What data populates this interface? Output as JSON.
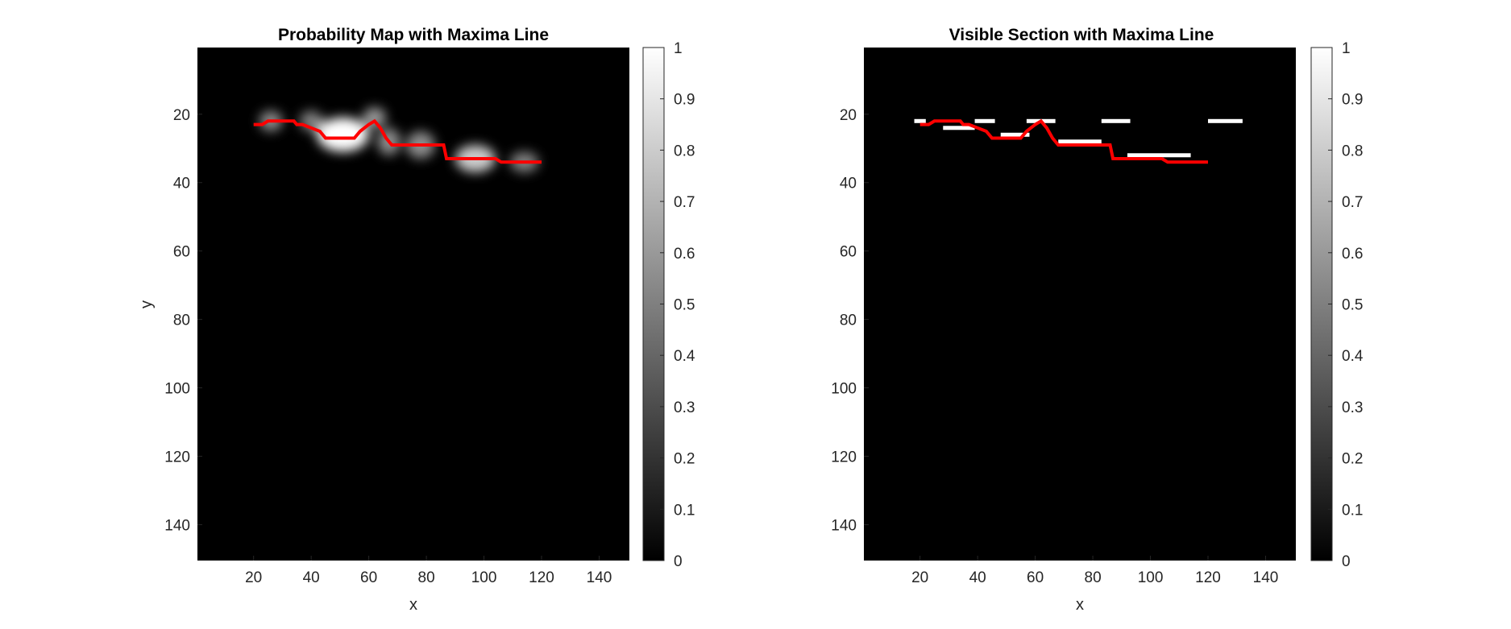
{
  "chart_data": [
    {
      "type": "heatmap",
      "title": "Probability Map with Maxima Line",
      "xlabel": "x",
      "ylabel": "y",
      "xlim": [
        0.5,
        150.5
      ],
      "ylim": [
        0.5,
        150.5
      ],
      "y_reversed": true,
      "x_ticks": [
        "20",
        "40",
        "60",
        "80",
        "100",
        "120",
        "140"
      ],
      "y_ticks": [
        "20",
        "40",
        "60",
        "80",
        "100",
        "120",
        "140"
      ],
      "colormap": "gray",
      "colorbar": {
        "min": 0,
        "max": 1,
        "ticks": [
          "0",
          "0.1",
          "0.2",
          "0.3",
          "0.4",
          "0.5",
          "0.6",
          "0.7",
          "0.8",
          "0.9",
          "1"
        ]
      },
      "blobs": [
        {
          "x": 26,
          "y": 22,
          "rx": 4,
          "ry": 3,
          "peak": 0.55
        },
        {
          "x": 40,
          "y": 22,
          "rx": 4,
          "ry": 3,
          "peak": 0.5
        },
        {
          "x": 51,
          "y": 26,
          "rx": 9,
          "ry": 5,
          "peak": 1.0
        },
        {
          "x": 62,
          "y": 21,
          "rx": 4,
          "ry": 3,
          "peak": 0.6
        },
        {
          "x": 67,
          "y": 28,
          "rx": 4,
          "ry": 4,
          "peak": 0.55
        },
        {
          "x": 78,
          "y": 29,
          "rx": 5,
          "ry": 4,
          "peak": 0.55
        },
        {
          "x": 97,
          "y": 33,
          "rx": 7,
          "ry": 4,
          "peak": 0.8
        },
        {
          "x": 114,
          "y": 34,
          "rx": 5,
          "ry": 3,
          "peak": 0.5
        }
      ],
      "maxima_line": {
        "color": "#ff0000",
        "x": [
          20,
          23,
          25,
          34,
          35,
          37,
          40,
          43,
          45,
          55,
          57,
          60,
          62,
          64,
          66,
          68,
          86,
          87,
          91,
          104,
          106,
          120
        ],
        "y": [
          23,
          23,
          22,
          22,
          23,
          23,
          24,
          25,
          27,
          27,
          25,
          23,
          22,
          24,
          27,
          29,
          29,
          33,
          33,
          33,
          34,
          34
        ]
      }
    },
    {
      "type": "heatmap",
      "title": "Visible Section with Maxima Line",
      "xlabel": "x",
      "ylabel": "",
      "xlim": [
        0.5,
        150.5
      ],
      "ylim": [
        0.5,
        150.5
      ],
      "y_reversed": true,
      "x_ticks": [
        "20",
        "40",
        "60",
        "80",
        "100",
        "120",
        "140"
      ],
      "y_ticks": [
        "20",
        "40",
        "60",
        "80",
        "100",
        "120",
        "140"
      ],
      "colormap": "gray",
      "colorbar": {
        "min": 0,
        "max": 1,
        "ticks": [
          "0",
          "0.1",
          "0.2",
          "0.3",
          "0.4",
          "0.5",
          "0.6",
          "0.7",
          "0.8",
          "0.9",
          "1"
        ]
      },
      "visible_segments": [
        {
          "x1": 18,
          "x2": 22,
          "y": 22
        },
        {
          "x1": 28,
          "x2": 39,
          "y": 24
        },
        {
          "x1": 39,
          "x2": 46,
          "y": 22
        },
        {
          "x1": 48,
          "x2": 58,
          "y": 26
        },
        {
          "x1": 57,
          "x2": 67,
          "y": 22
        },
        {
          "x1": 68,
          "x2": 83,
          "y": 28
        },
        {
          "x1": 83,
          "x2": 93,
          "y": 22
        },
        {
          "x1": 92,
          "x2": 114,
          "y": 32
        },
        {
          "x1": 120,
          "x2": 132,
          "y": 22
        }
      ],
      "maxima_line": {
        "color": "#ff0000",
        "x": [
          20,
          23,
          25,
          34,
          35,
          37,
          40,
          43,
          45,
          55,
          57,
          60,
          62,
          64,
          66,
          68,
          86,
          87,
          91,
          104,
          106,
          120
        ],
        "y": [
          23,
          23,
          22,
          22,
          23,
          23,
          24,
          25,
          27,
          27,
          25,
          23,
          22,
          24,
          27,
          29,
          29,
          33,
          33,
          33,
          34,
          34
        ]
      }
    }
  ]
}
